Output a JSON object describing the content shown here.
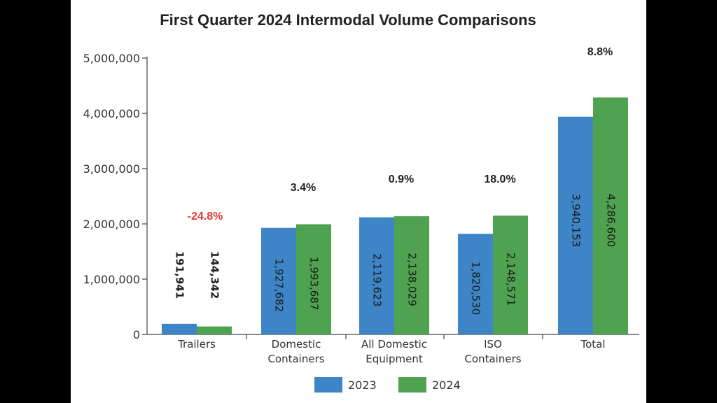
{
  "chart_data": {
    "type": "bar",
    "title": "First Quarter 2024 Intermodal Volume Comparisons",
    "xlabel": "",
    "ylabel": "",
    "ylim": [
      0,
      5000000
    ],
    "yticks": [
      "0",
      "1,000,000",
      "2,000,000",
      "3,000,000",
      "4,000,000",
      "5,000,000"
    ],
    "ytick_values": [
      0,
      1000000,
      2000000,
      3000000,
      4000000,
      5000000
    ],
    "categories": [
      [
        "Trailers"
      ],
      [
        "Domestic",
        "Containers"
      ],
      [
        "All Domestic",
        "Equipment"
      ],
      [
        "ISO",
        "Containers"
      ],
      [
        "Total"
      ]
    ],
    "series": [
      {
        "name": "2023",
        "color": "#3d85c6",
        "values": [
          191941,
          1927682,
          2119623,
          1820530,
          3940153
        ],
        "labels": [
          "191,941",
          "1,927,682",
          "2,119,623",
          "1,820,530",
          "3,940,153"
        ]
      },
      {
        "name": "2024",
        "color": "#4fa24f",
        "values": [
          144342,
          1993687,
          2138029,
          2148571,
          4286600
        ],
        "labels": [
          "144,342",
          "1,993,687",
          "2,138,029",
          "2,148,571",
          "4,286,600"
        ]
      }
    ],
    "pct_changes": [
      "-24.8%",
      "3.4%",
      "0.9%",
      "18.0%",
      "8.8%"
    ],
    "pct_colors": [
      "#e53935",
      "#222222",
      "#222222",
      "#222222",
      "#222222"
    ],
    "grid": false,
    "legend": "bottom"
  }
}
